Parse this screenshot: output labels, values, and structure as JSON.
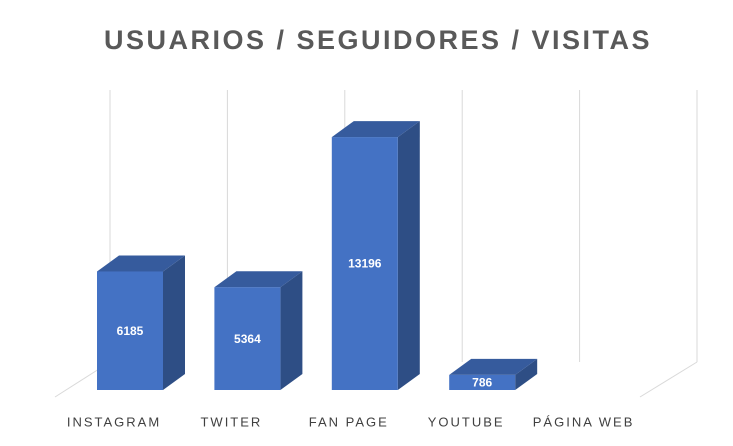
{
  "chart_data": {
    "type": "bar3d",
    "title": "USUARIOS / SEGUIDORES / VISITAS",
    "categories": [
      "INSTAGRAM",
      "TWITER",
      "FAN PAGE",
      "YOUTUBE",
      "PÁGINA WEB"
    ],
    "values": [
      6185,
      5364,
      13196,
      786,
      null
    ],
    "color": "#4472c4",
    "ylim": [
      0,
      15600
    ]
  }
}
